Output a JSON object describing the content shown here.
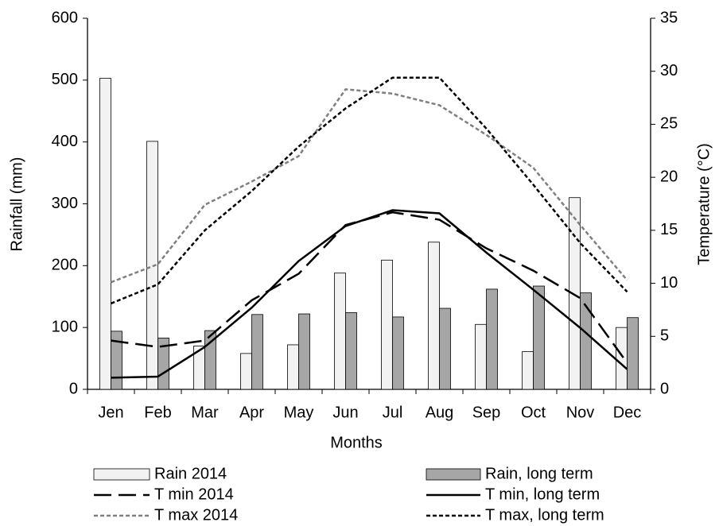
{
  "chart_data": {
    "type": "bar",
    "x_label": "Months",
    "y_label": "Rainfall (mm)",
    "y2_label": "Temperature (°C)",
    "categories": [
      "Jen",
      "Feb",
      "Mar",
      "Apr",
      "May",
      "Jun",
      "Jul",
      "Aug",
      "Sep",
      "Oct",
      "Nov",
      "Dec"
    ],
    "ylim": [
      0,
      600
    ],
    "yticks": [
      0,
      100,
      200,
      300,
      400,
      500,
      600
    ],
    "y2lim": [
      0,
      35
    ],
    "y2ticks": [
      0,
      5,
      10,
      15,
      20,
      25,
      30,
      35
    ],
    "grid": false,
    "legend": "bottom",
    "series": [
      {
        "name": "Rain 2014",
        "type": "bar",
        "color": "#f2f2f2",
        "values": [
          503,
          401,
          70,
          58,
          72,
          188,
          209,
          238,
          105,
          61,
          310,
          100
        ]
      },
      {
        "name": "Rain, long term",
        "type": "bar",
        "color": "#a6a6a6",
        "values": [
          94,
          83,
          95,
          121,
          122,
          124,
          117,
          131,
          162,
          167,
          156,
          116
        ]
      },
      {
        "name": "T min 2014",
        "type": "line",
        "axis": "y2",
        "color": "#000000",
        "dash": "long-dash",
        "values": [
          4.6,
          4.0,
          4.6,
          8.4,
          10.9,
          15.5,
          16.7,
          16.0,
          13.3,
          11.2,
          8.6,
          2.5
        ]
      },
      {
        "name": "T min, long term",
        "type": "line",
        "axis": "y2",
        "color": "#000000",
        "dash": "solid",
        "values": [
          1.1,
          1.2,
          4.0,
          7.7,
          12.1,
          15.4,
          16.9,
          16.6,
          12.9,
          9.4,
          5.8,
          1.9
        ]
      },
      {
        "name": "T max 2014",
        "type": "line",
        "axis": "y2",
        "color": "#7f7f7f",
        "dash": "dot",
        "values": [
          10.1,
          11.8,
          17.4,
          19.6,
          22.0,
          28.3,
          27.9,
          26.8,
          24.0,
          20.9,
          15.5,
          10.3
        ]
      },
      {
        "name": "T max, long term",
        "type": "line",
        "axis": "y2",
        "color": "#000000",
        "dash": "dot",
        "values": [
          8.1,
          9.9,
          15.0,
          18.7,
          22.9,
          26.5,
          29.4,
          29.4,
          24.6,
          19.3,
          13.8,
          9.2
        ]
      }
    ]
  }
}
